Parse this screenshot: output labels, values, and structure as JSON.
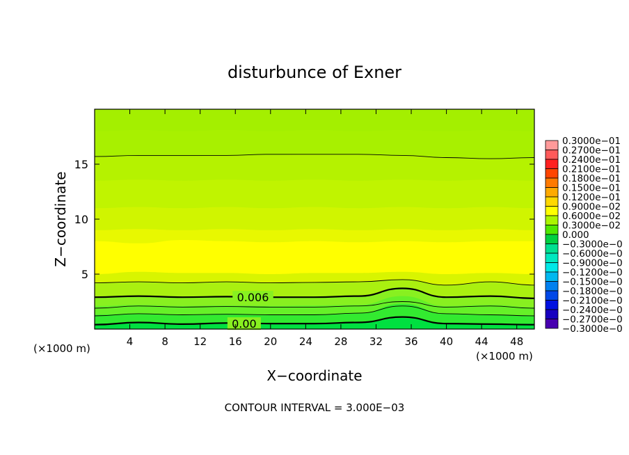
{
  "chart_data": {
    "type": "heatmap",
    "title": "disturbunce of Exner",
    "xlabel": "X−coordinate",
    "ylabel": "Z−coordinate",
    "x_unit_left": "(×1000 m)",
    "x_unit_right": "(×1000 m)",
    "xlim": [
      0,
      50
    ],
    "ylim": [
      0,
      20
    ],
    "xticks": [
      4,
      8,
      12,
      16,
      20,
      24,
      28,
      32,
      36,
      40,
      44,
      48
    ],
    "yticks": [
      5,
      10,
      15
    ],
    "footer": "CONTOUR INTERVAL = 3.000E−03",
    "contour_labels": [
      {
        "text": "0.006",
        "x": 18,
        "z": 2.9
      },
      {
        "text": "0.00",
        "x": 17,
        "z": 0.5
      }
    ],
    "fill_layers": [
      {
        "z": [
          0.5,
          0.55,
          0.45,
          0.55,
          0.5,
          0.45,
          0.55,
          1.0,
          0.5,
          0.45,
          0.5
        ],
        "color": "#00e040"
      },
      {
        "z": [
          1.3,
          1.4,
          1.3,
          1.4,
          1.3,
          1.35,
          1.45,
          2.3,
          1.4,
          1.3,
          1.25
        ],
        "color": "#33ea30"
      },
      {
        "z": [
          2.1,
          2.2,
          2.1,
          2.15,
          2.1,
          2.15,
          2.2,
          3.0,
          2.1,
          2.2,
          2.0
        ],
        "color": "#66f028"
      },
      {
        "z": [
          2.9,
          3.0,
          2.9,
          3.0,
          2.9,
          2.95,
          3.0,
          3.8,
          2.9,
          3.0,
          2.8
        ],
        "color": "#88f020"
      },
      {
        "z": [
          4.2,
          4.3,
          4.2,
          4.3,
          4.2,
          4.25,
          4.3,
          4.5,
          4.0,
          4.3,
          4.0
        ],
        "color": "#aaf010"
      },
      {
        "z": [
          5.0,
          5.2,
          5.1,
          5.1,
          5.0,
          5.1,
          5.1,
          5.2,
          5.0,
          5.1,
          5.0
        ],
        "color": "#d8f500"
      },
      {
        "z": [
          8.0,
          7.8,
          8.1,
          8.0,
          7.9,
          8.0,
          7.9,
          8.0,
          7.9,
          8.0,
          8.0
        ],
        "color": "#ffff00"
      },
      {
        "z": [
          9.0,
          9.1,
          9.0,
          9.1,
          9.0,
          9.1,
          9.0,
          9.1,
          9.0,
          9.1,
          9.0
        ],
        "color": "#e8f800"
      },
      {
        "z": [
          11.0,
          11.1,
          11.0,
          11.1,
          11.0,
          11.1,
          11.0,
          11.1,
          11.0,
          11.1,
          11.0
        ],
        "color": "#d0f500"
      },
      {
        "z": [
          13.5,
          13.6,
          13.5,
          13.6,
          13.5,
          13.6,
          13.5,
          13.6,
          13.5,
          13.6,
          13.5
        ],
        "color": "#c0f400"
      },
      {
        "z": [
          15.6,
          15.7,
          15.7,
          15.8,
          15.8,
          15.9,
          15.9,
          15.8,
          15.6,
          15.5,
          15.5
        ],
        "color": "#b5f200"
      },
      {
        "z": [
          18.0,
          18.1,
          18.0,
          18.1,
          18.0,
          18.1,
          18.0,
          18.1,
          18.0,
          18.1,
          18.0
        ],
        "color": "#a8f000"
      }
    ],
    "contour_lines": [
      {
        "z": [
          0.4,
          0.6,
          0.45,
          0.55,
          0.5,
          0.5,
          0.6,
          1.1,
          0.5,
          0.45,
          0.4
        ],
        "width": 2.2
      },
      {
        "z": [
          1.2,
          1.4,
          1.3,
          1.35,
          1.3,
          1.3,
          1.45,
          2.1,
          1.4,
          1.3,
          1.2
        ],
        "width": 0.9
      },
      {
        "z": [
          1.9,
          2.1,
          2.0,
          2.05,
          2.0,
          2.0,
          2.1,
          2.5,
          2.0,
          2.1,
          1.9
        ],
        "width": 0.9
      },
      {
        "z": [
          2.9,
          3.0,
          2.9,
          2.95,
          2.9,
          2.9,
          3.0,
          3.7,
          2.9,
          3.0,
          2.8
        ],
        "width": 2.2
      },
      {
        "z": [
          4.2,
          4.3,
          4.2,
          4.3,
          4.2,
          4.25,
          4.3,
          4.5,
          4.0,
          4.3,
          4.0
        ],
        "width": 0.9
      },
      {
        "z": [
          15.7,
          15.8,
          15.8,
          15.8,
          15.9,
          15.9,
          15.9,
          15.8,
          15.6,
          15.5,
          15.6
        ],
        "width": 0.9
      }
    ],
    "colorbar": {
      "labels": [
        "0.3000e−01",
        "0.2700e−01",
        "0.2400e−01",
        "0.2100e−01",
        "0.1800e−01",
        "0.1500e−01",
        "0.1200e−01",
        "0.9000e−02",
        "0.6000e−02",
        "0.3000e−02",
        "0.000",
        "−0.3000e−0",
        "−0.6000e−0",
        "−0.9000e−0",
        "−0.1200e−0",
        "−0.1500e−0",
        "−0.1800e−0",
        "−0.2100e−0",
        "−0.2400e−0",
        "−0.2700e−0",
        "−0.3000e−0"
      ],
      "colors": [
        "#ff9a9a",
        "#ff5a5a",
        "#ff2020",
        "#ff4400",
        "#ff7a00",
        "#ffaa00",
        "#ffd800",
        "#ffff00",
        "#aaf500",
        "#4fe800",
        "#00d040",
        "#00e090",
        "#00e8c0",
        "#00e8e8",
        "#00b8f0",
        "#0080f0",
        "#0048e8",
        "#0010e0",
        "#1800c0",
        "#4800b0"
      ]
    }
  }
}
